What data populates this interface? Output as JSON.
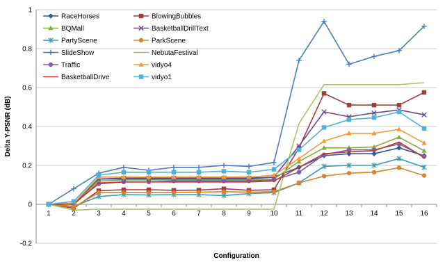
{
  "chart_data": {
    "type": "line",
    "title": "",
    "xlabel": "Configuration",
    "ylabel": "Delta Y-PSNR (dB)",
    "ylim": [
      -0.2,
      1
    ],
    "yticks": [
      -0.2,
      0,
      0.2,
      0.4,
      0.6,
      0.8,
      1
    ],
    "ytick_labels": [
      "-0.2",
      "0",
      "0.2",
      "0.4",
      "0.6",
      "0.8",
      "1"
    ],
    "categories": [
      "1",
      "2",
      "3",
      "4",
      "5",
      "6",
      "7",
      "8",
      "9",
      "10",
      "11",
      "12",
      "13",
      "14",
      "15",
      "16"
    ],
    "grid": "horizontal",
    "legend_position": "top-left",
    "series": [
      {
        "name": "RaceHorses",
        "color": "#2e5a9c",
        "marker": "diamond",
        "values": [
          0,
          0.005,
          0.13,
          0.13,
          0.13,
          0.13,
          0.13,
          0.13,
          0.13,
          0.14,
          0.19,
          0.25,
          0.26,
          0.26,
          0.29,
          0.25
        ]
      },
      {
        "name": "BlowingBubbles",
        "color": "#a23b3b",
        "marker": "square",
        "values": [
          0,
          -0.02,
          0.07,
          0.075,
          0.075,
          0.072,
          0.073,
          0.08,
          0.072,
          0.075,
          0.29,
          0.57,
          0.51,
          0.51,
          0.51,
          0.575
        ]
      },
      {
        "name": "BQMall",
        "color": "#8aac3e",
        "marker": "triangle",
        "values": [
          0,
          0.005,
          0.12,
          0.125,
          0.125,
          0.125,
          0.125,
          0.125,
          0.125,
          0.13,
          0.22,
          0.29,
          0.29,
          0.295,
          0.345,
          0.275
        ]
      },
      {
        "name": "BasketballDrillText",
        "color": "#6b4a8e",
        "marker": "x",
        "values": [
          0,
          0.005,
          0.13,
          0.135,
          0.135,
          0.135,
          0.135,
          0.135,
          0.135,
          0.14,
          0.3,
          0.475,
          0.45,
          0.47,
          0.485,
          0.46
        ]
      },
      {
        "name": "PartyScene",
        "color": "#3a9bb0",
        "marker": "asterisk",
        "values": [
          0,
          -0.01,
          0.04,
          0.05,
          0.048,
          0.05,
          0.05,
          0.045,
          0.055,
          0.06,
          0.11,
          0.195,
          0.2,
          0.2,
          0.235,
          0.19
        ]
      },
      {
        "name": "ParkScene",
        "color": "#d8822e",
        "marker": "circle",
        "values": [
          0,
          -0.015,
          0.06,
          0.06,
          0.06,
          0.06,
          0.062,
          0.065,
          0.063,
          0.065,
          0.11,
          0.145,
          0.16,
          0.165,
          0.188,
          0.148
        ]
      },
      {
        "name": "SlideShow",
        "color": "#4a7cc6",
        "marker": "plus",
        "values": [
          0,
          0.08,
          0.16,
          0.19,
          0.175,
          0.19,
          0.19,
          0.2,
          0.195,
          0.215,
          0.74,
          0.94,
          0.72,
          0.76,
          0.79,
          0.915
        ]
      },
      {
        "name": "NebutaFestival",
        "color": "#a6c760",
        "marker": "none",
        "values": [
          0,
          -0.03,
          -0.025,
          -0.025,
          -0.025,
          -0.025,
          -0.025,
          -0.025,
          -0.025,
          -0.025,
          0.415,
          0.615,
          0.615,
          0.615,
          0.615,
          0.625
        ]
      },
      {
        "name": "Traffic",
        "color": "#7c5fa6",
        "marker": "circle",
        "values": [
          0,
          0.005,
          0.105,
          0.115,
          0.115,
          0.12,
          0.12,
          0.12,
          0.12,
          0.125,
          0.165,
          0.255,
          0.28,
          0.28,
          0.31,
          0.245
        ]
      },
      {
        "name": "vidyo4",
        "color": "#f29a38",
        "marker": "triangle",
        "values": [
          0,
          0.005,
          0.14,
          0.14,
          0.14,
          0.14,
          0.14,
          0.14,
          0.14,
          0.15,
          0.235,
          0.325,
          0.365,
          0.365,
          0.385,
          0.315
        ]
      },
      {
        "name": "BasketballDrive",
        "color": "#c0392b",
        "marker": "none",
        "values": [
          0,
          0.0,
          0.11,
          0.115,
          0.115,
          0.115,
          0.115,
          0.115,
          0.115,
          0.12,
          0.19,
          0.26,
          0.27,
          0.275,
          0.32,
          0.24
        ]
      },
      {
        "name": "vidyo1",
        "color": "#4bb3d6",
        "marker": "square",
        "values": [
          0,
          0.015,
          0.15,
          0.165,
          0.165,
          0.165,
          0.165,
          0.17,
          0.165,
          0.18,
          0.28,
          0.395,
          0.435,
          0.445,
          0.475,
          0.39
        ]
      }
    ]
  }
}
